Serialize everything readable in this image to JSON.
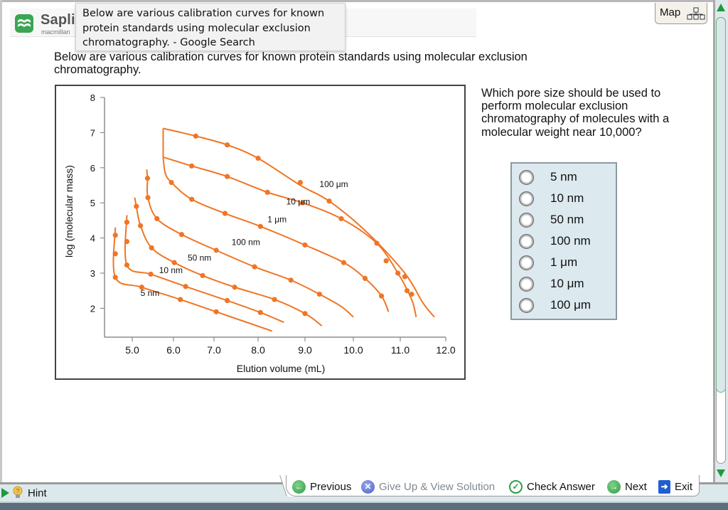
{
  "browser": {
    "tooltip_text": "Below are various calibration curves for known protein standards using molecular exclusion chromatography. - Google Search"
  },
  "header": {
    "logo_text": "Saplir",
    "logo_subtext": "macmillan",
    "map_label": "Map",
    "map_icon": "sitemap-icon"
  },
  "content": {
    "intro": "Below are various calibration curves for known protein standards using molecular exclusion chromatography.",
    "question": "Which pore size should be used to perform molecular exclusion chromatography of molecules with a molecular weight near 10,000?",
    "options": [
      {
        "label": "5 nm",
        "selected": false
      },
      {
        "label": "10 nm",
        "selected": false
      },
      {
        "label": "50 nm",
        "selected": false
      },
      {
        "label": "100 nm",
        "selected": false
      },
      {
        "label": "1 μm",
        "selected": false
      },
      {
        "label": "10 μm",
        "selected": false
      },
      {
        "label": "100 μm",
        "selected": false
      }
    ]
  },
  "footer": {
    "hint_label": "Hint",
    "previous_label": "Previous",
    "give_up_label": "Give Up & View Solution",
    "check_answer_label": "Check Answer",
    "next_label": "Next",
    "exit_label": "Exit"
  },
  "colors": {
    "curve": "#f07524",
    "accent_green": "#1d9a3e",
    "options_bg": "#dce9ee",
    "give_up_icon": "#4a5fc7",
    "check_icon": "#2e9e46",
    "exit_icon": "#1f5fcf"
  },
  "chart_data": {
    "type": "line",
    "title": "",
    "xlabel": "Elution volume (mL)",
    "ylabel": "log (molecular mass)",
    "xlim": [
      4.4,
      12.0
    ],
    "ylim": [
      1.2,
      8.0
    ],
    "xticks": [
      "5.0",
      "6.0",
      "7.0",
      "8.0",
      "9.0",
      "10.0",
      "11.0",
      "12.0"
    ],
    "yticks": [
      "2",
      "3",
      "4",
      "5",
      "6",
      "7",
      "8"
    ],
    "grid": false,
    "legend": "inline labels",
    "series": [
      {
        "name": "5 nm",
        "label_pos": [
          5.2,
          2.35
        ],
        "line": [
          [
            4.59,
            4.3
          ],
          [
            4.59,
            2.88
          ],
          [
            5.23,
            2.6
          ],
          [
            6.17,
            2.25
          ],
          [
            7.05,
            1.9
          ],
          [
            8.3,
            1.35
          ]
        ],
        "points": [
          [
            4.59,
            4.08
          ],
          [
            4.59,
            3.55
          ],
          [
            4.59,
            2.88
          ],
          [
            5.23,
            2.6
          ],
          [
            6.17,
            2.25
          ],
          [
            7.05,
            1.9
          ]
        ]
      },
      {
        "name": "10 nm",
        "label_pos": [
          5.65,
          3.0
        ],
        "line": [
          [
            4.87,
            4.65
          ],
          [
            4.87,
            3.23
          ],
          [
            5.45,
            2.97
          ],
          [
            6.3,
            2.62
          ],
          [
            7.3,
            2.22
          ],
          [
            8.05,
            1.88
          ],
          [
            8.55,
            1.6
          ]
        ],
        "points": [
          [
            4.87,
            4.45
          ],
          [
            4.87,
            3.9
          ],
          [
            4.87,
            3.23
          ],
          [
            5.45,
            2.97
          ],
          [
            6.3,
            2.62
          ],
          [
            7.3,
            2.22
          ],
          [
            8.05,
            1.88
          ]
        ]
      },
      {
        "name": "50 nm",
        "label_pos": [
          6.35,
          3.35
        ],
        "line": [
          [
            5.06,
            5.15
          ],
          [
            5.1,
            4.9
          ],
          [
            5.2,
            4.35
          ],
          [
            5.47,
            3.72
          ],
          [
            6.02,
            3.3
          ],
          [
            6.72,
            2.93
          ],
          [
            7.47,
            2.6
          ],
          [
            8.35,
            2.25
          ],
          [
            9.0,
            1.85
          ],
          [
            9.35,
            1.5
          ]
        ],
        "points": [
          [
            5.1,
            4.9
          ],
          [
            5.2,
            4.35
          ],
          [
            5.47,
            3.72
          ],
          [
            6.02,
            3.3
          ],
          [
            6.72,
            2.93
          ],
          [
            7.47,
            2.6
          ],
          [
            8.35,
            2.25
          ],
          [
            9.0,
            1.85
          ]
        ]
      },
      {
        "name": "100 nm",
        "label_pos": [
          7.4,
          3.8
        ],
        "line": [
          [
            5.35,
            5.95
          ],
          [
            5.37,
            5.7
          ],
          [
            5.38,
            5.15
          ],
          [
            5.6,
            4.55
          ],
          [
            6.2,
            4.1
          ],
          [
            7.05,
            3.65
          ],
          [
            7.92,
            3.18
          ],
          [
            8.7,
            2.8
          ],
          [
            9.3,
            2.4
          ],
          [
            9.75,
            2.05
          ],
          [
            10.0,
            1.75
          ]
        ],
        "points": [
          [
            5.37,
            5.7
          ],
          [
            5.38,
            5.15
          ],
          [
            5.6,
            4.55
          ],
          [
            6.2,
            4.1
          ],
          [
            7.05,
            3.65
          ],
          [
            7.92,
            3.18
          ],
          [
            8.7,
            2.8
          ],
          [
            9.3,
            2.4
          ]
        ]
      },
      {
        "name": "1 μm",
        "label_pos": [
          8.2,
          4.45
        ],
        "line": [
          [
            5.75,
            6.3
          ],
          [
            5.8,
            5.85
          ],
          [
            5.95,
            5.58
          ],
          [
            6.45,
            5.1
          ],
          [
            7.25,
            4.7
          ],
          [
            8.05,
            4.33
          ],
          [
            9.0,
            3.8
          ],
          [
            9.8,
            3.3
          ],
          [
            10.25,
            2.85
          ],
          [
            10.6,
            2.35
          ],
          [
            10.75,
            1.9
          ]
        ],
        "points": [
          [
            5.95,
            5.58
          ],
          [
            6.45,
            5.1
          ],
          [
            7.25,
            4.7
          ],
          [
            8.05,
            4.33
          ],
          [
            9.0,
            3.8
          ],
          [
            9.8,
            3.3
          ],
          [
            10.25,
            2.85
          ],
          [
            10.6,
            2.35
          ]
        ]
      },
      {
        "name": "10 μm",
        "label_pos": [
          8.6,
          4.95
        ],
        "line": [
          [
            5.75,
            6.3
          ],
          [
            6.45,
            6.05
          ],
          [
            7.3,
            5.75
          ],
          [
            8.2,
            5.3
          ],
          [
            8.95,
            5.0
          ],
          [
            9.75,
            4.55
          ],
          [
            10.5,
            3.85
          ],
          [
            10.95,
            3.0
          ],
          [
            11.25,
            2.25
          ],
          [
            11.35,
            1.75
          ]
        ],
        "points": [
          [
            6.45,
            6.05
          ],
          [
            7.3,
            5.75
          ],
          [
            8.2,
            5.3
          ],
          [
            8.95,
            5.0
          ],
          [
            9.75,
            4.55
          ],
          [
            10.5,
            3.85
          ],
          [
            10.95,
            3.0
          ],
          [
            11.15,
            2.5
          ]
        ]
      },
      {
        "name": "100 μm",
        "label_pos": [
          9.3,
          5.45
        ],
        "line": [
          [
            5.75,
            7.12
          ],
          [
            6.55,
            6.9
          ],
          [
            7.3,
            6.65
          ],
          [
            8.0,
            6.27
          ],
          [
            8.9,
            5.5
          ],
          [
            9.5,
            5.05
          ],
          [
            10.3,
            4.15
          ],
          [
            11.1,
            3.0
          ],
          [
            11.5,
            2.15
          ],
          [
            11.75,
            1.75
          ]
        ],
        "points": [
          [
            6.55,
            6.9
          ],
          [
            7.3,
            6.65
          ],
          [
            8.0,
            6.27
          ],
          [
            8.9,
            5.58
          ],
          [
            9.5,
            5.05
          ],
          [
            10.7,
            3.35
          ],
          [
            11.1,
            2.9
          ],
          [
            11.25,
            2.4
          ]
        ]
      }
    ],
    "shared_vertical_start": [
      [
        5.75,
        7.12
      ],
      [
        5.75,
        6.3
      ]
    ]
  }
}
